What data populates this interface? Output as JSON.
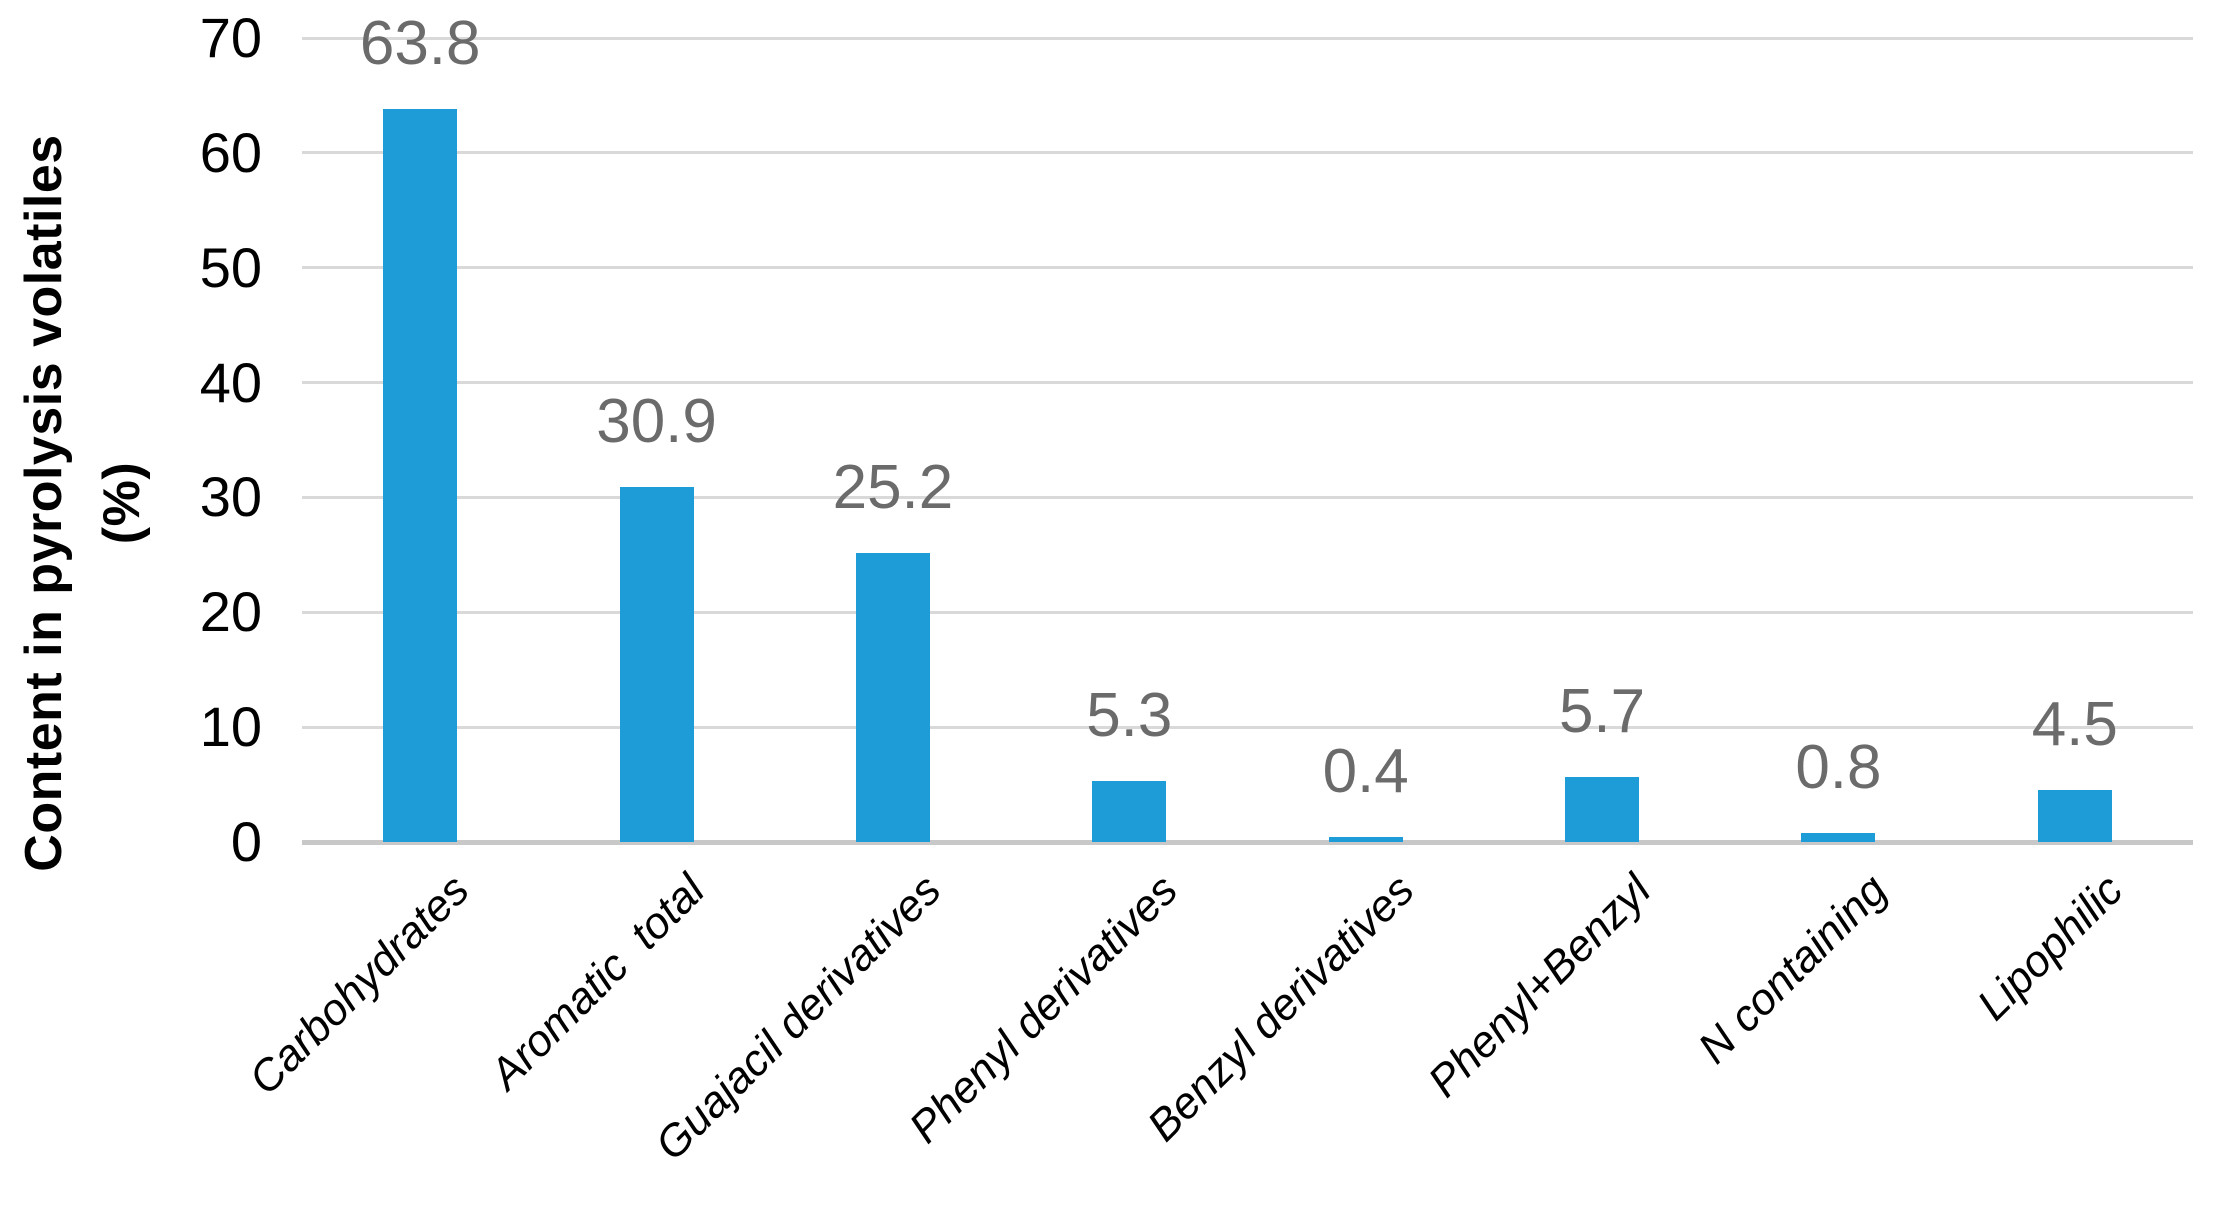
{
  "chart_data": {
    "type": "bar",
    "title": "",
    "categories": [
      "Carbohydrates",
      "Aromatic  total",
      "Guajacil derivatives",
      "Phenyl derivatives",
      "Benzyl derivatives",
      "Phenyl+Benzyl",
      "N containing",
      "Lipophilic"
    ],
    "values": [
      63.8,
      30.9,
      25.2,
      5.3,
      0.4,
      5.7,
      0.8,
      4.5
    ],
    "data_labels": [
      "63.8",
      "30.9",
      "25.2",
      "5.3",
      "0.4",
      "5.7",
      "0.8",
      "4.5"
    ],
    "ylabel": "Content in pyrolysis volatiles (%)",
    "ylabel_lines": [
      "Content in pyrolysis volatiles",
      "(%)"
    ],
    "xlabel": "",
    "yticks": [
      "0",
      "10",
      "20",
      "30",
      "40",
      "50",
      "60",
      "70"
    ],
    "ytick_values": [
      0,
      10,
      20,
      30,
      40,
      50,
      60,
      70
    ],
    "ylim": [
      0,
      70
    ],
    "grid": true,
    "legend_position": "none",
    "colors": {
      "bar": "#1E9CD8",
      "data_label": "#6B6B6B",
      "gridline": "#D9D9D9",
      "axis_line": "#C8C8C8",
      "tick_text": "#000000",
      "category_text": "#000000"
    }
  }
}
